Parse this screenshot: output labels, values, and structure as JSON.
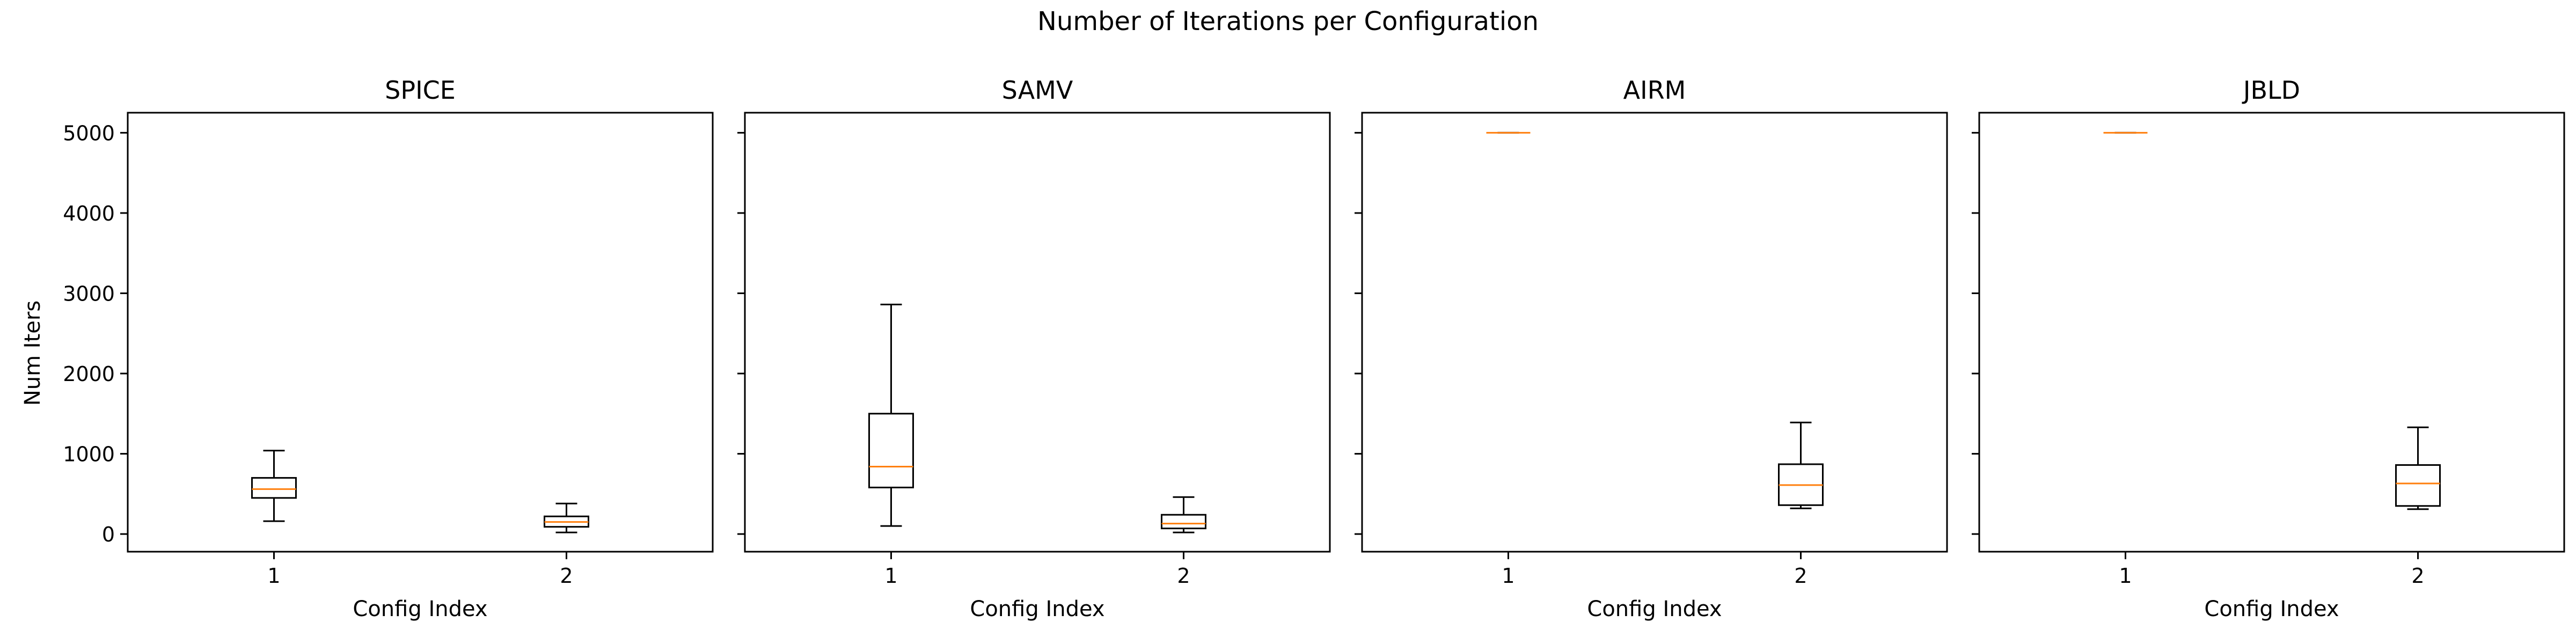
{
  "figure": {
    "suptitle": "Number of Iterations per Configuration"
  },
  "colors": {
    "box_edge": "#000000",
    "median": "#ff7f0e",
    "background": "#ffffff"
  },
  "chart_data": {
    "type": "boxplot",
    "suptitle": "Number of Iterations per Configuration",
    "ylabel": "Num Iters",
    "ylim": [
      -220,
      5250
    ],
    "yticks": [
      0,
      1000,
      2000,
      3000,
      4000,
      5000
    ],
    "xlabel": "Config Index",
    "categories": [
      "1",
      "2"
    ],
    "sharey": true,
    "grid": false,
    "panels": [
      {
        "title": "SPICE",
        "boxes": [
          {
            "category": "1",
            "whisker_low": 160,
            "q1": 450,
            "median": 560,
            "q3": 700,
            "whisker_high": 1040
          },
          {
            "category": "2",
            "whisker_low": 20,
            "q1": 90,
            "median": 150,
            "q3": 220,
            "whisker_high": 380
          }
        ]
      },
      {
        "title": "SAMV",
        "boxes": [
          {
            "category": "1",
            "whisker_low": 100,
            "q1": 580,
            "median": 840,
            "q3": 1500,
            "whisker_high": 2860
          },
          {
            "category": "2",
            "whisker_low": 20,
            "q1": 70,
            "median": 130,
            "q3": 240,
            "whisker_high": 460
          }
        ]
      },
      {
        "title": "AIRM",
        "boxes": [
          {
            "category": "1",
            "whisker_low": 5000,
            "q1": 5000,
            "median": 5000,
            "q3": 5000,
            "whisker_high": 5000
          },
          {
            "category": "2",
            "whisker_low": 320,
            "q1": 360,
            "median": 610,
            "q3": 870,
            "whisker_high": 1390
          }
        ]
      },
      {
        "title": "JBLD",
        "boxes": [
          {
            "category": "1",
            "whisker_low": 5000,
            "q1": 5000,
            "median": 5000,
            "q3": 5000,
            "whisker_high": 5000
          },
          {
            "category": "2",
            "whisker_low": 310,
            "q1": 350,
            "median": 630,
            "q3": 860,
            "whisker_high": 1330
          }
        ]
      }
    ]
  }
}
